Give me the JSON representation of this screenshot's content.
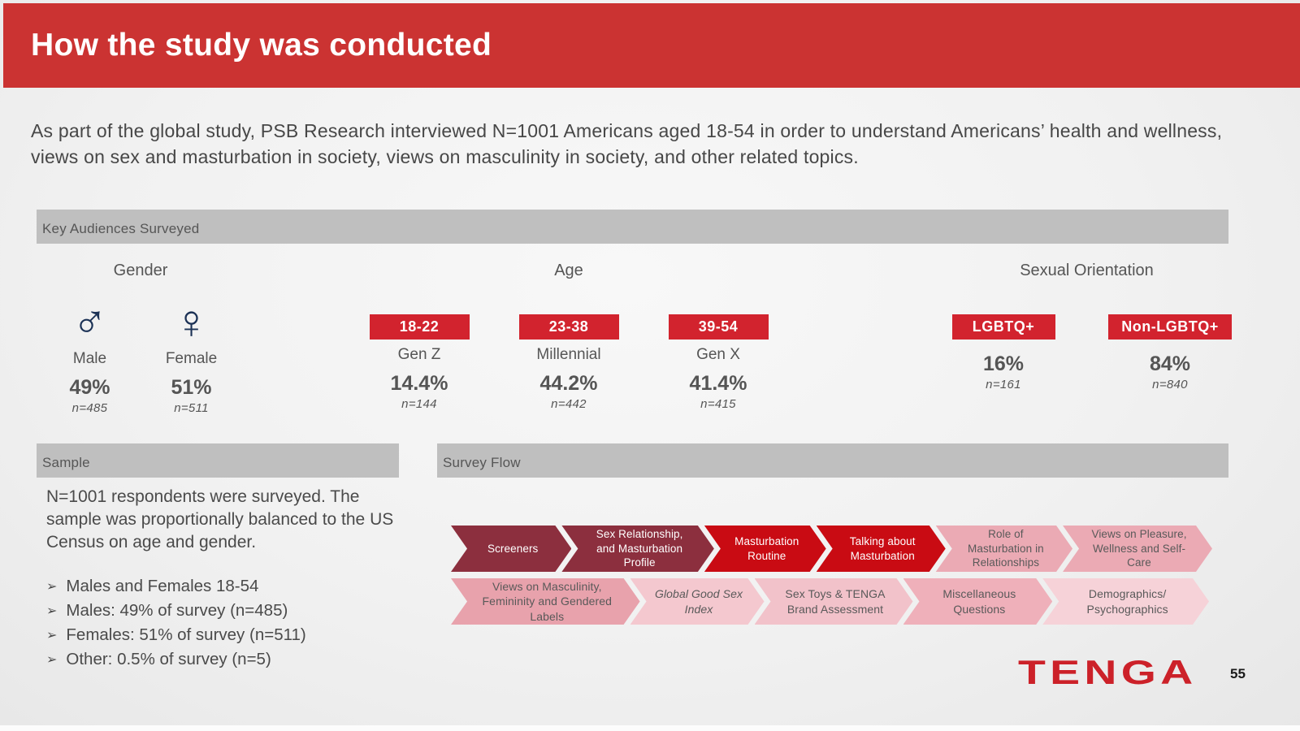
{
  "slide": {
    "title": "How the study was conducted",
    "intro": "As part of the global study, PSB Research interviewed N=1001 Americans aged 18-54 in order to understand Americans’ health and wellness, views on sex and masturbation in society, views on masculinity in society, and other related topics.",
    "logo_text": "TENGA",
    "page_number": "55"
  },
  "key_audiences": {
    "header": "Key Audiences Surveyed",
    "gender": {
      "label": "Gender",
      "items": [
        {
          "icon": "male-icon",
          "symbol": "♂",
          "label": "Male",
          "pct": "49%",
          "n": "n=485"
        },
        {
          "icon": "female-icon",
          "symbol": "♀",
          "label": "Female",
          "pct": "51%",
          "n": "n=511"
        }
      ]
    },
    "age": {
      "label": "Age",
      "items": [
        {
          "badge": "18-22",
          "gen": "Gen Z",
          "pct": "14.4%",
          "n": "n=144"
        },
        {
          "badge": "23-38",
          "gen": "Millennial",
          "pct": "44.2%",
          "n": "n=442"
        },
        {
          "badge": "39-54",
          "gen": "Gen X",
          "pct": "41.4%",
          "n": "n=415"
        }
      ]
    },
    "orientation": {
      "label": "Sexual Orientation",
      "items": [
        {
          "badge": "LGBTQ+",
          "pct": "16%",
          "n": "n=161"
        },
        {
          "badge": "Non-LGBTQ+",
          "pct": "84%",
          "n": "n=840"
        }
      ]
    }
  },
  "sample": {
    "header": "Sample",
    "text": "N=1001 respondents were surveyed. The sample was proportionally balanced to the US Census on age and gender.",
    "bullet_glyph": "➢",
    "bullets": [
      "Males and Females 18-54",
      "Males: 49% of survey (n=485)",
      "Females: 51% of survey (n=511)",
      "Other: 0.5% of survey (n=5)"
    ]
  },
  "survey_flow": {
    "header": "Survey Flow",
    "rows": [
      [
        {
          "label": "Screeners"
        },
        {
          "label": "Sex Relationship, and Masturbation Profile"
        },
        {
          "label": "Masturbation Routine"
        },
        {
          "label": "Talking about Masturbation"
        },
        {
          "label": "Role of Masturbation in Relationships"
        },
        {
          "label": "Views on Pleasure, Wellness and Self-Care"
        }
      ],
      [
        {
          "label": "Views on Masculinity, Femininity and Gendered Labels"
        },
        {
          "label": "Global Good Sex Index"
        },
        {
          "label": "Sex Toys & TENGA Brand Assessment"
        },
        {
          "label": "Miscellaneous Questions"
        },
        {
          "label": "Demographics/ Psychographics"
        }
      ]
    ]
  },
  "colors": {
    "header_red": "#CB3332",
    "badge_red": "#D2232E",
    "bar_gray": "#BFBFBF",
    "icon_navy": "#1B3155",
    "logo_red": "#CC2129",
    "flow_maroon": "#8C2F3E",
    "flow_red": "#C90B13",
    "flow_pink": "#EBAAB4",
    "flow_pink_medium": "#E8A2AC",
    "flow_pink_light": "#F4C8CF",
    "flow_pink_soft": "#F2C2CA",
    "flow_pink_mid": "#EFB0BA",
    "flow_pink_lightest": "#F6D2D8"
  }
}
